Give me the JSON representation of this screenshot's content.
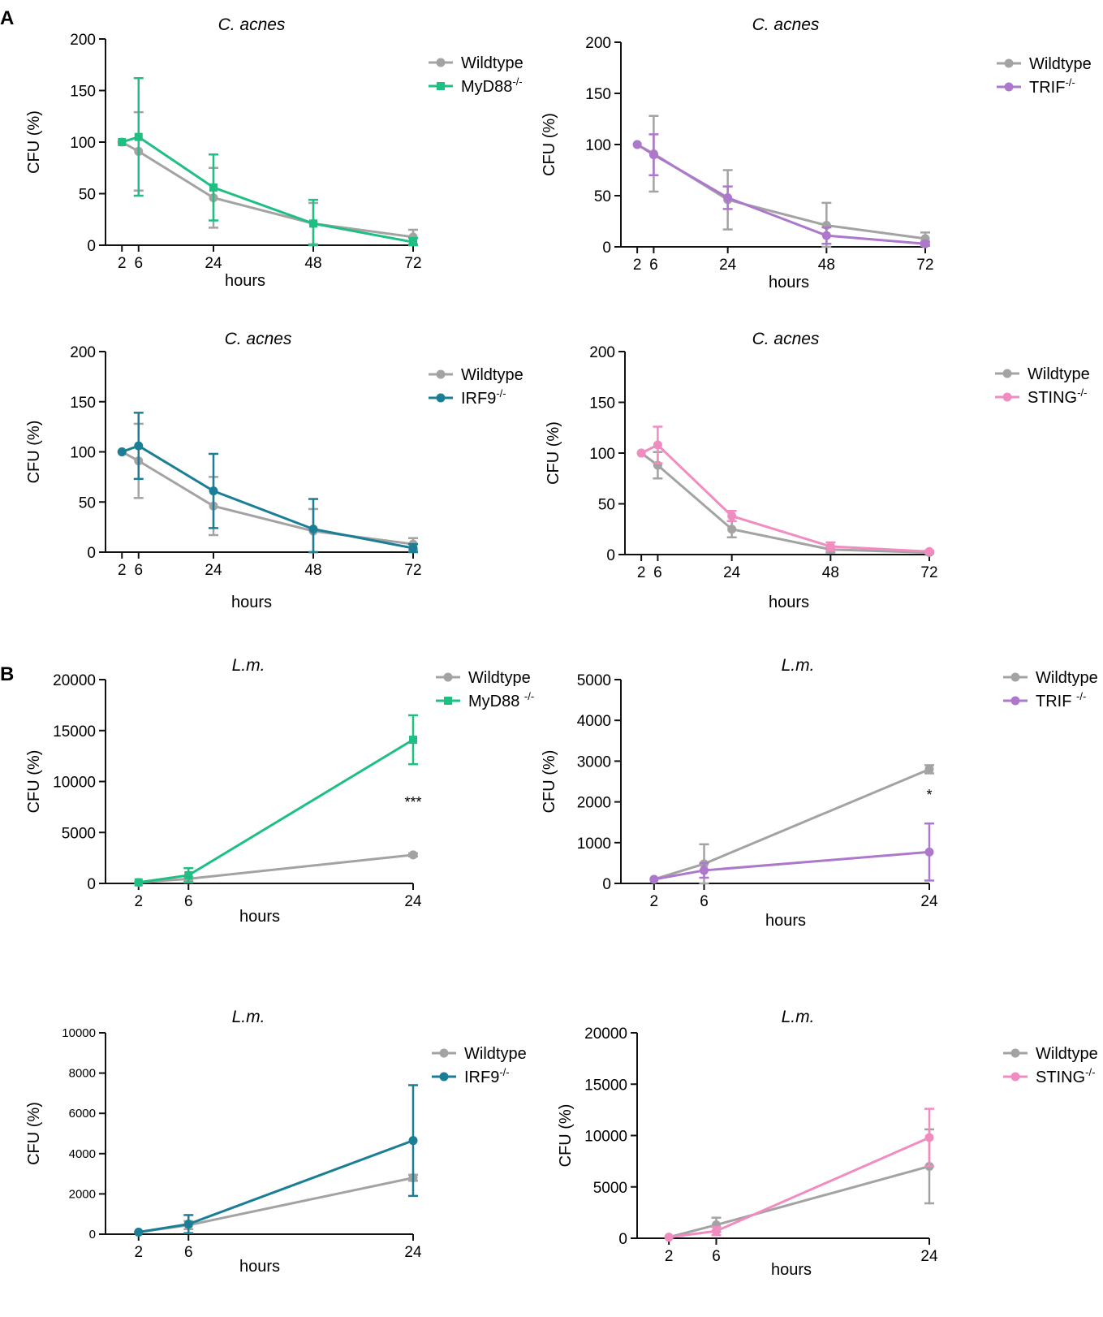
{
  "figure": {
    "panel_labels": [
      "A",
      "B"
    ]
  },
  "colors": {
    "wildtype": "#a3a3a3",
    "myd88": "#1fbf84",
    "trif": "#ad78cc",
    "irf9": "#1a7f96",
    "sting": "#f08cc0"
  },
  "chart_data": [
    {
      "type": "line",
      "panel": "A",
      "title": "C. acnes",
      "xlabel": "hours",
      "ylabel": "CFU (%)",
      "xlim": [
        0,
        72
      ],
      "ylim": [
        0,
        200
      ],
      "x_ticks": [
        2,
        6,
        24,
        48,
        72
      ],
      "y_ticks": [
        0,
        50,
        100,
        150,
        200
      ],
      "series": [
        {
          "name": "Wildtype",
          "sup": "",
          "color_key": "wildtype",
          "marker": "circle",
          "x": [
            2,
            6,
            24,
            48,
            72
          ],
          "y": [
            100,
            91,
            46,
            21,
            8
          ],
          "err": [
            0,
            38,
            29,
            20,
            7
          ]
        },
        {
          "name": "MyD88",
          "sup": "-/-",
          "color_key": "myd88",
          "marker": "square",
          "x": [
            2,
            6,
            24,
            48,
            72
          ],
          "y": [
            100,
            105,
            56,
            21,
            3
          ],
          "err": [
            0,
            57,
            32,
            23,
            4
          ]
        }
      ]
    },
    {
      "type": "line",
      "panel": "A",
      "title": "C. acnes",
      "xlabel": "hours",
      "ylabel": "CFU (%)",
      "xlim": [
        0,
        72
      ],
      "ylim": [
        0,
        200
      ],
      "x_ticks": [
        2,
        6,
        24,
        48,
        72
      ],
      "y_ticks": [
        0,
        50,
        100,
        150,
        200
      ],
      "series": [
        {
          "name": "Wildtype",
          "sup": "",
          "color_key": "wildtype",
          "marker": "circle",
          "x": [
            2,
            6,
            24,
            48,
            72
          ],
          "y": [
            100,
            91,
            46,
            21,
            8
          ],
          "err": [
            0,
            37,
            29,
            22,
            6
          ]
        },
        {
          "name": "TRIF",
          "sup": "-/-",
          "color_key": "trif",
          "marker": "circle",
          "x": [
            2,
            6,
            24,
            48,
            72
          ],
          "y": [
            100,
            90,
            48,
            11,
            3
          ],
          "err": [
            0,
            20,
            11,
            8,
            2
          ]
        }
      ]
    },
    {
      "type": "line",
      "panel": "A",
      "title": "C. acnes",
      "xlabel": "hours",
      "ylabel": "CFU (%)",
      "xlim": [
        0,
        72
      ],
      "ylim": [
        0,
        200
      ],
      "x_ticks": [
        2,
        6,
        24,
        48,
        72
      ],
      "y_ticks": [
        0,
        50,
        100,
        150,
        200
      ],
      "series": [
        {
          "name": "Wildtype",
          "sup": "",
          "color_key": "wildtype",
          "marker": "circle",
          "x": [
            2,
            6,
            24,
            48,
            72
          ],
          "y": [
            100,
            91,
            46,
            21,
            8
          ],
          "err": [
            0,
            37,
            29,
            22,
            6
          ]
        },
        {
          "name": "IRF9",
          "sup": "-/-",
          "color_key": "irf9",
          "marker": "circle",
          "x": [
            2,
            6,
            24,
            48,
            72
          ],
          "y": [
            100,
            106,
            61,
            23,
            4
          ],
          "err": [
            0,
            33,
            37,
            30,
            4
          ]
        }
      ]
    },
    {
      "type": "line",
      "panel": "A",
      "title": "C. acnes",
      "xlabel": "hours",
      "ylabel": "CFU (%)",
      "xlim": [
        0,
        72
      ],
      "ylim": [
        0,
        200
      ],
      "x_ticks": [
        2,
        6,
        24,
        48,
        72
      ],
      "y_ticks": [
        0,
        50,
        100,
        150,
        200
      ],
      "series": [
        {
          "name": "Wildtype",
          "sup": "",
          "color_key": "wildtype",
          "marker": "circle",
          "x": [
            2,
            6,
            24,
            48,
            72
          ],
          "y": [
            100,
            88,
            25,
            5,
            2
          ],
          "err": [
            0,
            13,
            8,
            3,
            1
          ]
        },
        {
          "name": "STING",
          "sup": "-/-",
          "color_key": "sting",
          "marker": "circle",
          "x": [
            2,
            6,
            24,
            48,
            72
          ],
          "y": [
            100,
            108,
            38,
            8,
            3
          ],
          "err": [
            0,
            18,
            5,
            4,
            1
          ]
        }
      ]
    },
    {
      "type": "line",
      "panel": "B",
      "title": "L.m.",
      "xlabel": "hours",
      "ylabel": "CFU (%)",
      "xlim": [
        0,
        24
      ],
      "ylim": [
        0,
        20000
      ],
      "x_ticks": [
        2,
        6,
        24
      ],
      "y_ticks": [
        0,
        5000,
        10000,
        15000,
        20000
      ],
      "annotation": {
        "text": "***",
        "x": 24,
        "y": 7500
      },
      "series": [
        {
          "name": "Wildtype",
          "sup": "",
          "color_key": "wildtype",
          "marker": "circle",
          "x": [
            2,
            6,
            24
          ],
          "y": [
            100,
            450,
            2800
          ],
          "err": [
            0,
            200,
            150
          ]
        },
        {
          "name": "MyD88 ",
          "sup": "-/-",
          "color_key": "myd88",
          "marker": "square",
          "x": [
            2,
            6,
            24
          ],
          "y": [
            100,
            800,
            14100
          ],
          "err": [
            0,
            700,
            2400
          ]
        }
      ]
    },
    {
      "type": "line",
      "panel": "B",
      "title": "L.m.",
      "xlabel": "hours",
      "ylabel": "CFU (%)",
      "xlim": [
        0,
        24
      ],
      "ylim": [
        0,
        5000
      ],
      "x_ticks": [
        2,
        6,
        24
      ],
      "y_ticks": [
        0,
        1000,
        2000,
        3000,
        4000,
        5000
      ],
      "annotation": {
        "text": "*",
        "x": 24,
        "y": 2050
      },
      "series": [
        {
          "name": "Wildtype",
          "sup": "",
          "color_key": "wildtype",
          "marker": "circle",
          "x": [
            2,
            6,
            24
          ],
          "y": [
            100,
            480,
            2800
          ],
          "err": [
            0,
            480,
            100
          ]
        },
        {
          "name": "TRIF ",
          "sup": "-/-",
          "color_key": "trif",
          "marker": "circle",
          "x": [
            2,
            6,
            24
          ],
          "y": [
            100,
            320,
            770
          ],
          "err": [
            0,
            180,
            700
          ]
        }
      ]
    },
    {
      "type": "line",
      "panel": "B",
      "title": "L.m.",
      "xlabel": "hours",
      "ylabel": "CFU (%)",
      "xlim": [
        0,
        24
      ],
      "ylim": [
        0,
        10000
      ],
      "small_ticks": true,
      "x_ticks": [
        2,
        6,
        24
      ],
      "y_ticks": [
        0,
        2000,
        4000,
        6000,
        8000,
        10000
      ],
      "series": [
        {
          "name": "Wildtype",
          "sup": "",
          "color_key": "wildtype",
          "marker": "circle",
          "x": [
            2,
            6,
            24
          ],
          "y": [
            100,
            450,
            2800
          ],
          "err": [
            0,
            200,
            150
          ]
        },
        {
          "name": "IRF9",
          "sup": "-/-",
          "color_key": "irf9",
          "marker": "circle",
          "x": [
            2,
            6,
            24
          ],
          "y": [
            100,
            500,
            4650
          ],
          "err": [
            0,
            450,
            2750
          ]
        }
      ]
    },
    {
      "type": "line",
      "panel": "B",
      "title": "L.m.",
      "xlabel": "hours",
      "ylabel": "CFU (%)",
      "xlim": [
        0,
        24
      ],
      "ylim": [
        0,
        20000
      ],
      "x_ticks": [
        2,
        6,
        24
      ],
      "y_ticks": [
        0,
        5000,
        10000,
        15000,
        20000
      ],
      "series": [
        {
          "name": "Wildtype",
          "sup": "",
          "color_key": "wildtype",
          "marker": "circle",
          "x": [
            2,
            6,
            24
          ],
          "y": [
            100,
            1300,
            7000
          ],
          "err": [
            0,
            700,
            3600
          ]
        },
        {
          "name": "STING",
          "sup": "-/-",
          "color_key": "sting",
          "marker": "circle",
          "x": [
            2,
            6,
            24
          ],
          "y": [
            100,
            700,
            9800
          ],
          "err": [
            0,
            400,
            2800
          ]
        }
      ]
    }
  ]
}
